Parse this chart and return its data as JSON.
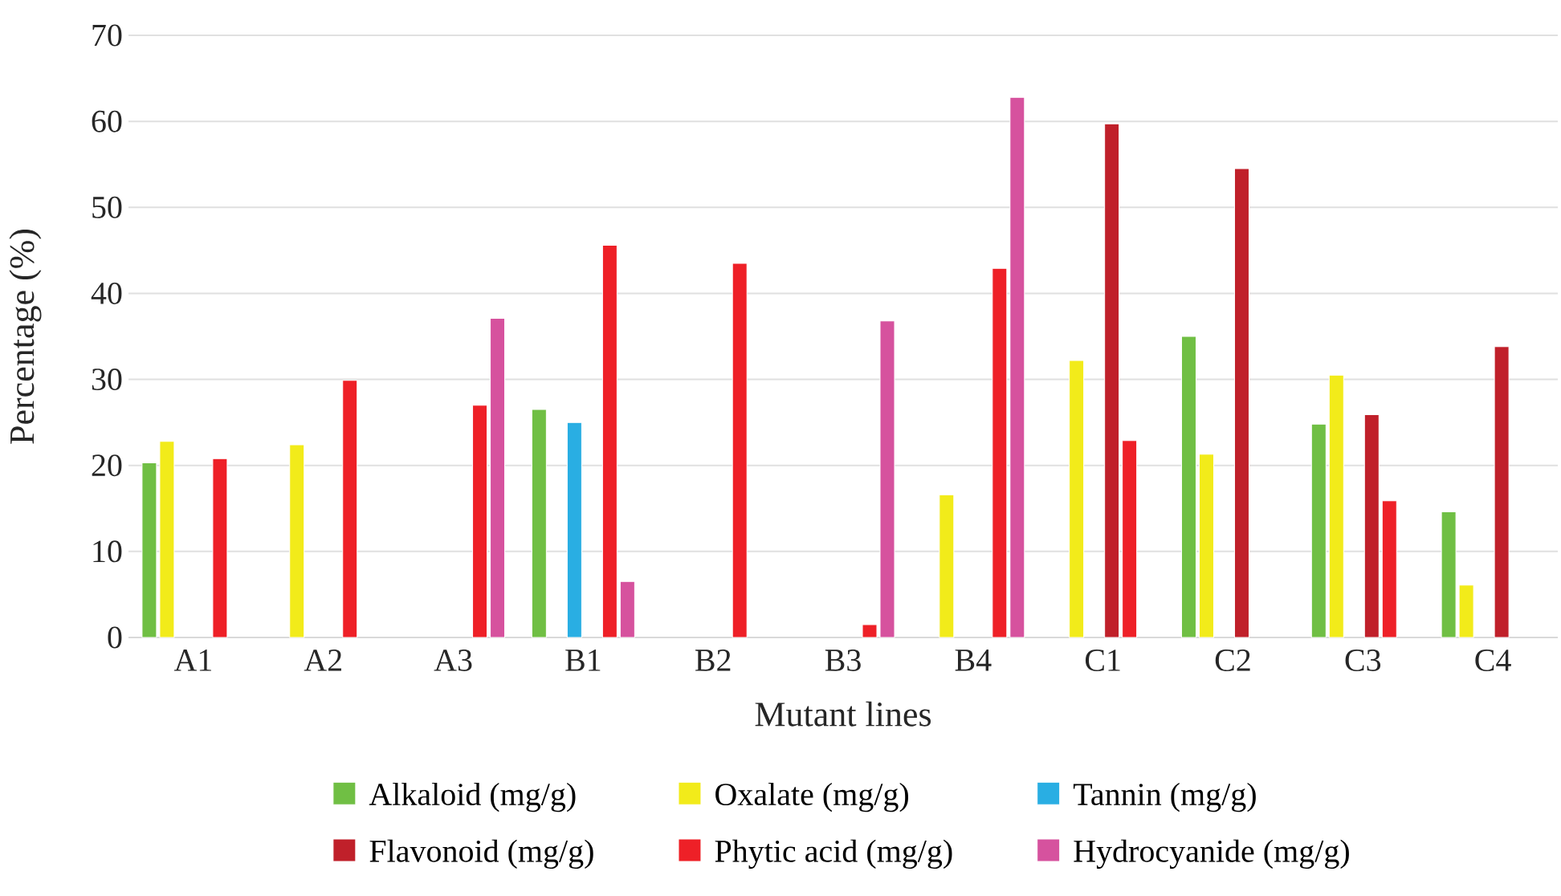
{
  "chart_data": {
    "type": "bar",
    "xlabel": "Mutant lines",
    "ylabel": "Percentage (%)",
    "categories": [
      "A1",
      "A2",
      "A3",
      "B1",
      "B2",
      "B3",
      "B4",
      "C1",
      "C2",
      "C3",
      "C4"
    ],
    "ylim": [
      0,
      70
    ],
    "yticks": [
      0,
      10,
      20,
      30,
      40,
      50,
      60,
      70
    ],
    "grid": "y",
    "legend": "bottom",
    "series": [
      {
        "name": "Alkaloid (mg/g)",
        "color": "#70bf44",
        "values": [
          20.3,
          null,
          null,
          26.5,
          null,
          null,
          null,
          null,
          35.0,
          24.8,
          14.6
        ]
      },
      {
        "name": "Oxalate (mg/g)",
        "color": "#f2eb1a",
        "values": [
          22.8,
          22.4,
          null,
          null,
          null,
          null,
          16.6,
          32.2,
          21.3,
          30.5,
          6.1
        ]
      },
      {
        "name": "Tannin (mg/g)",
        "color": "#29aee3",
        "values": [
          null,
          null,
          null,
          25.0,
          null,
          null,
          null,
          null,
          null,
          null,
          null
        ]
      },
      {
        "name": "Flavonoid (mg/g)",
        "color": "#c0202a",
        "values": [
          null,
          null,
          null,
          null,
          null,
          null,
          null,
          59.7,
          54.5,
          25.9,
          33.8
        ]
      },
      {
        "name": "Phytic acid (mg/g)",
        "color": "#ee2027",
        "values": [
          20.8,
          29.9,
          27.0,
          45.6,
          43.5,
          1.5,
          42.9,
          22.9,
          null,
          15.9,
          null
        ]
      },
      {
        "name": "Hydrocyanide (mg/g)",
        "color": "#d6529e",
        "values": [
          null,
          null,
          37.1,
          6.5,
          null,
          36.8,
          62.8,
          null,
          null,
          null,
          null
        ]
      }
    ]
  }
}
